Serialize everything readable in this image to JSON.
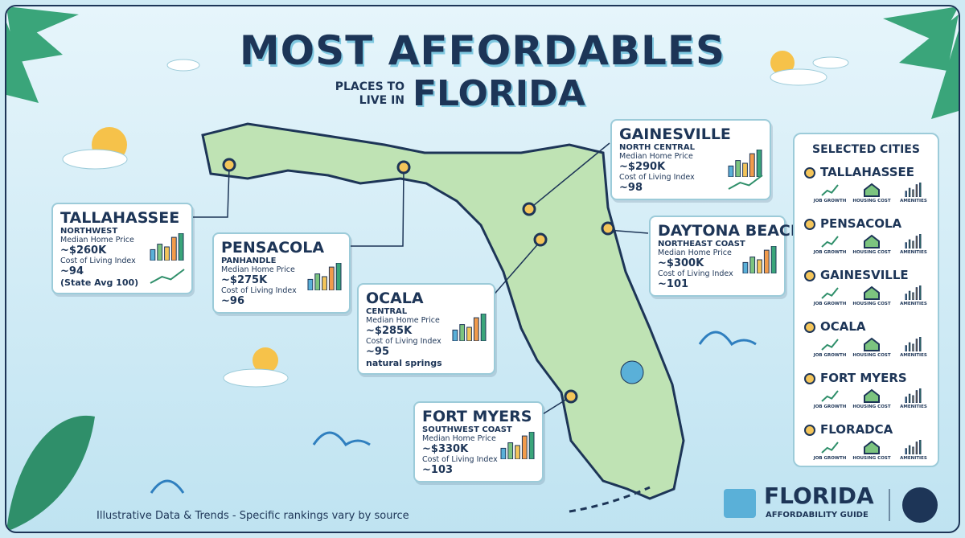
{
  "header": {
    "title": "MOST AFFORDABLES",
    "kicker": "PLACES TO LIVE IN",
    "subtitle": "FLORIDA"
  },
  "cities": [
    {
      "name": "TALLAHASSEE",
      "region": "NORTHWEST",
      "price_label": "Median Home Price",
      "price": "~$260K",
      "index_label": "Cost of Living Index",
      "index": "~94",
      "note": "(State Avg 100)"
    },
    {
      "name": "PENSACOLA",
      "region": "PANHANDLE",
      "price_label": "Median Home Price",
      "price": "~$275K",
      "index_label": "Cost of Living Index",
      "index": "~96"
    },
    {
      "name": "OCALA",
      "region": "CENTRAL",
      "price_label": "Median Home Price",
      "price": "~$285K",
      "index_label": "Cost of Living Index",
      "index": "~95",
      "note": "natural springs"
    },
    {
      "name": "GAINESVILLE",
      "region": "NORTH CENTRAL",
      "price_label": "Median Home Price",
      "price": "~$290K",
      "index_label": "Cost of Living Index",
      "index": "~98"
    },
    {
      "name": "DAYTONA BEACH",
      "region": "NORTHEAST COAST",
      "price_label": "Median Home Price",
      "price": "~$300K",
      "index_label": "Cost of Living Index",
      "index": "~101"
    },
    {
      "name": "FORT MYERS",
      "region": "SOUTHWEST COAST",
      "price_label": "Median Home Price",
      "price": "~$330K",
      "index_label": "Cost of Living Index",
      "index": "~103"
    }
  ],
  "sidebar": {
    "title": "SELECTED CITIES",
    "items": [
      {
        "name": "TALLAHASSEE",
        "labels": [
          "JOB GROWTH",
          "HOUSING COST",
          "AMENITIES"
        ]
      },
      {
        "name": "PENSACOLA",
        "labels": [
          "JOB GROWTH",
          "HOUSING COST",
          "AMENITIES"
        ]
      },
      {
        "name": "GAINESVILLE",
        "labels": [
          "JOB GROWTH",
          "HOUSING COST",
          "AMENITIES"
        ]
      },
      {
        "name": "OCALA",
        "labels": [
          "JOB GROWTH",
          "HOUSING COST",
          "AMENITIES"
        ]
      },
      {
        "name": "FORT MYERS",
        "labels": [
          "JOB GROWTH",
          "HOUSING COST",
          "AMENITIES"
        ]
      },
      {
        "name": "FLORADCA",
        "labels": [
          "JOB GROWTH",
          "HOUSING COST",
          "AMENITIES"
        ]
      }
    ]
  },
  "footer": {
    "note": "Illustrative Data & Trends - Specific rankings vary by source",
    "logo_title": "FLORIDA",
    "logo_subtitle": "AFFORDABILITY GUIDE"
  }
}
